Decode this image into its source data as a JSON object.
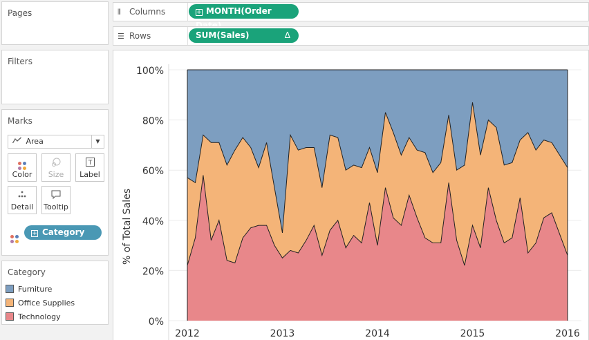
{
  "shelves": {
    "columns": {
      "label": "Columns",
      "icon": "columns-icon",
      "pill": "MONTH(Order Date)"
    },
    "rows": {
      "label": "Rows",
      "icon": "rows-icon",
      "pill": "SUM(Sales)",
      "pill_flag": "Δ"
    }
  },
  "cards": {
    "pages": "Pages",
    "filters": "Filters",
    "marks": "Marks",
    "category": "Category"
  },
  "marks": {
    "mark_type": "Area",
    "buttons": {
      "color": "Color",
      "size": "Size",
      "label": "Label",
      "detail": "Detail",
      "tooltip": "Tooltip"
    },
    "color_pill": "Category"
  },
  "colors": {
    "shelf_pill": "#1aa37a",
    "dimension_pill": "#4a98b4",
    "furniture": "#7d9ec0",
    "office_supplies": "#f4b478",
    "technology": "#e8878a"
  },
  "legend": [
    {
      "label": "Furniture",
      "color": "#7d9ec0"
    },
    {
      "label": "Office Supplies",
      "color": "#f4b478"
    },
    {
      "label": "Technology",
      "color": "#e8878a"
    }
  ],
  "chart_data": {
    "type": "area",
    "stacked": true,
    "normalized": true,
    "title": "",
    "xlabel": "",
    "ylabel": "% of Total Sales",
    "xlim": [
      "2012-01",
      "2016-01"
    ],
    "ylim": [
      0,
      100
    ],
    "x_ticks": [
      "2012",
      "2013",
      "2014",
      "2015",
      "2016"
    ],
    "y_ticks": [
      "0%",
      "20%",
      "40%",
      "60%",
      "80%",
      "100%"
    ],
    "legend_position": "left",
    "x": [
      "2012-01",
      "2012-02",
      "2012-03",
      "2012-04",
      "2012-05",
      "2012-06",
      "2012-07",
      "2012-08",
      "2012-09",
      "2012-10",
      "2012-11",
      "2012-12",
      "2013-01",
      "2013-02",
      "2013-03",
      "2013-04",
      "2013-05",
      "2013-06",
      "2013-07",
      "2013-08",
      "2013-09",
      "2013-10",
      "2013-11",
      "2013-12",
      "2014-01",
      "2014-02",
      "2014-03",
      "2014-04",
      "2014-05",
      "2014-06",
      "2014-07",
      "2014-08",
      "2014-09",
      "2014-10",
      "2014-11",
      "2014-12",
      "2015-01",
      "2015-02",
      "2015-03",
      "2015-04",
      "2015-05",
      "2015-06",
      "2015-07",
      "2015-08",
      "2015-09",
      "2015-10",
      "2015-11",
      "2015-12"
    ],
    "series": [
      {
        "name": "Technology",
        "values": [
          22,
          33,
          58,
          32,
          40,
          24,
          23,
          33,
          37,
          38,
          38,
          30,
          25,
          28,
          27,
          32,
          38,
          26,
          36,
          40,
          29,
          34,
          31,
          47,
          30,
          53,
          41,
          38,
          50,
          41,
          33,
          31,
          31,
          55,
          32,
          22,
          38,
          29,
          53,
          40,
          31,
          33,
          49,
          27,
          31,
          41,
          43,
          26
        ]
      },
      {
        "name": "Office Supplies",
        "values": [
          35,
          22,
          16,
          39,
          31,
          38,
          45,
          40,
          32,
          23,
          33,
          23,
          10,
          46,
          41,
          37,
          31,
          27,
          38,
          33,
          31,
          28,
          30,
          22,
          29,
          30,
          34,
          28,
          23,
          27,
          34,
          28,
          32,
          27,
          28,
          40,
          49,
          37,
          27,
          37,
          31,
          30,
          23,
          48,
          37,
          31,
          28,
          35
        ]
      },
      {
        "name": "Furniture",
        "values": [
          43,
          45,
          26,
          29,
          29,
          38,
          32,
          27,
          31,
          39,
          29,
          47,
          65,
          26,
          32,
          31,
          31,
          47,
          26,
          27,
          40,
          38,
          39,
          31,
          41,
          17,
          25,
          34,
          27,
          32,
          33,
          41,
          37,
          18,
          40,
          38,
          13,
          34,
          20,
          23,
          38,
          37,
          28,
          25,
          32,
          28,
          29,
          39
        ]
      }
    ]
  }
}
